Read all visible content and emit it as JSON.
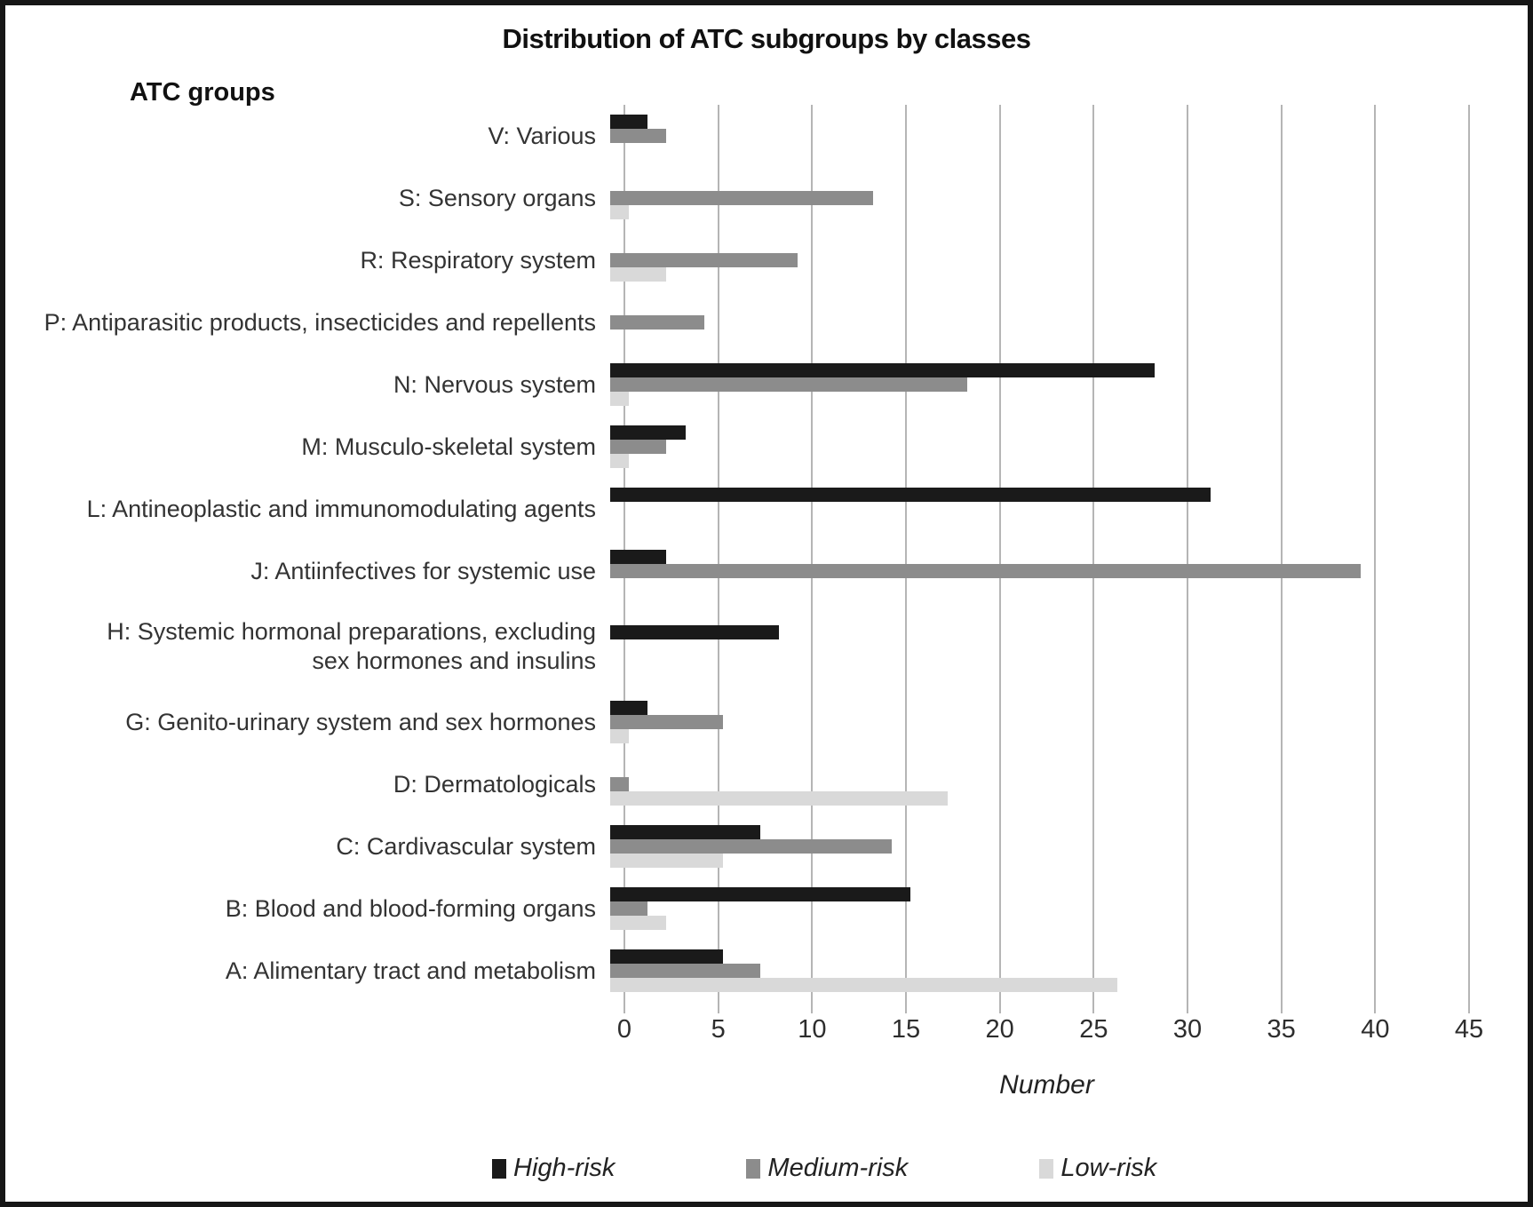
{
  "title": "Distribution of ATC subgroups by classes",
  "chart_data": {
    "type": "bar",
    "orientation": "horizontal",
    "title": "Distribution of ATC subgroups by classes",
    "xlabel": "Number",
    "ylabel": "ATC groups",
    "xlim": [
      0,
      45
    ],
    "x_ticks": [
      0,
      5,
      10,
      15,
      20,
      25,
      30,
      35,
      40,
      45
    ],
    "grid": "vertical",
    "grid_color": "#b5b5b5",
    "legend_position": "bottom",
    "categories": [
      "V: Various",
      "S: Sensory organs",
      "R: Respiratory system",
      "P: Antiparasitic products, insecticides and repellents",
      "N: Nervous system",
      "M: Musculo-skeletal system",
      "L: Antineoplastic and immunomodulating agents",
      "J: Antiinfectives for systemic use",
      "H: Systemic hormonal preparations, excluding\nsex hormones and insulins",
      "G: Genito-urinary system and sex hormones",
      "D: Dermatologicals",
      "C: Cardivascular system",
      "B: Blood and blood-forming organs",
      "A: Alimentary tract and metabolism"
    ],
    "series": [
      {
        "name": "High-risk",
        "color": "#1a1a1a",
        "values": [
          2,
          0,
          0,
          0,
          29,
          4,
          32,
          3,
          9,
          2,
          0,
          8,
          16,
          6
        ]
      },
      {
        "name": "Medium-risk",
        "color": "#8c8c8c",
        "values": [
          3,
          14,
          10,
          5,
          19,
          3,
          0,
          40,
          0,
          6,
          1,
          15,
          2,
          8
        ]
      },
      {
        "name": "Low-risk",
        "color": "#d9d9d9",
        "values": [
          0,
          1,
          3,
          0,
          1,
          1,
          0,
          0,
          0,
          1,
          18,
          6,
          3,
          27
        ]
      }
    ]
  }
}
